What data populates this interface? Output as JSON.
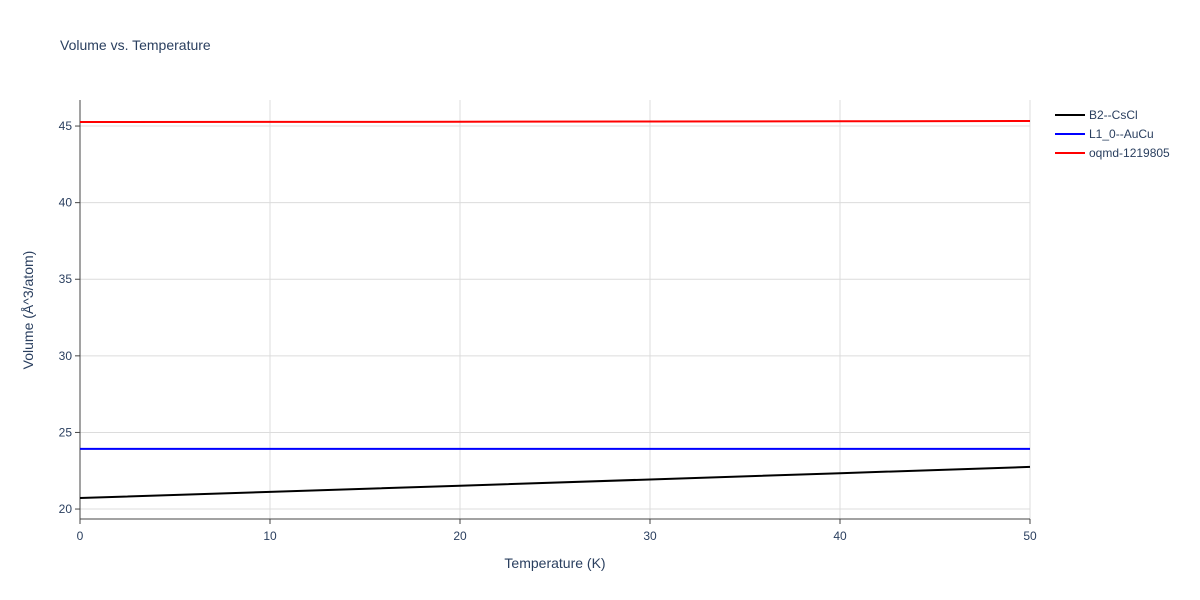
{
  "chart_data": {
    "type": "line",
    "title": "Volume vs. Temperature",
    "x_label": "Temperature (K)",
    "y_label": "Volume (Å^3/atom)",
    "x": [
      0,
      10,
      20,
      30,
      40,
      50
    ],
    "series": [
      {
        "name": "B2--CsCl",
        "color": "#000000",
        "values": [
          20.72,
          21.12,
          21.52,
          21.93,
          22.34,
          22.75
        ]
      },
      {
        "name": "L1_0--AuCu",
        "color": "#0000ff",
        "values": [
          23.93,
          23.93,
          23.93,
          23.93,
          23.93,
          23.93
        ]
      },
      {
        "name": "oqmd-1219805",
        "color": "#ff0000",
        "values": [
          45.26,
          45.27,
          45.28,
          45.3,
          45.31,
          45.33
        ]
      }
    ],
    "xlim": [
      0,
      50
    ],
    "xticks": [
      0,
      10,
      20,
      30,
      40,
      50
    ],
    "ylim": [
      19.35,
      46.7
    ],
    "yticks": [
      20,
      25,
      30,
      35,
      40,
      45
    ],
    "grid": true,
    "legend": "right"
  }
}
